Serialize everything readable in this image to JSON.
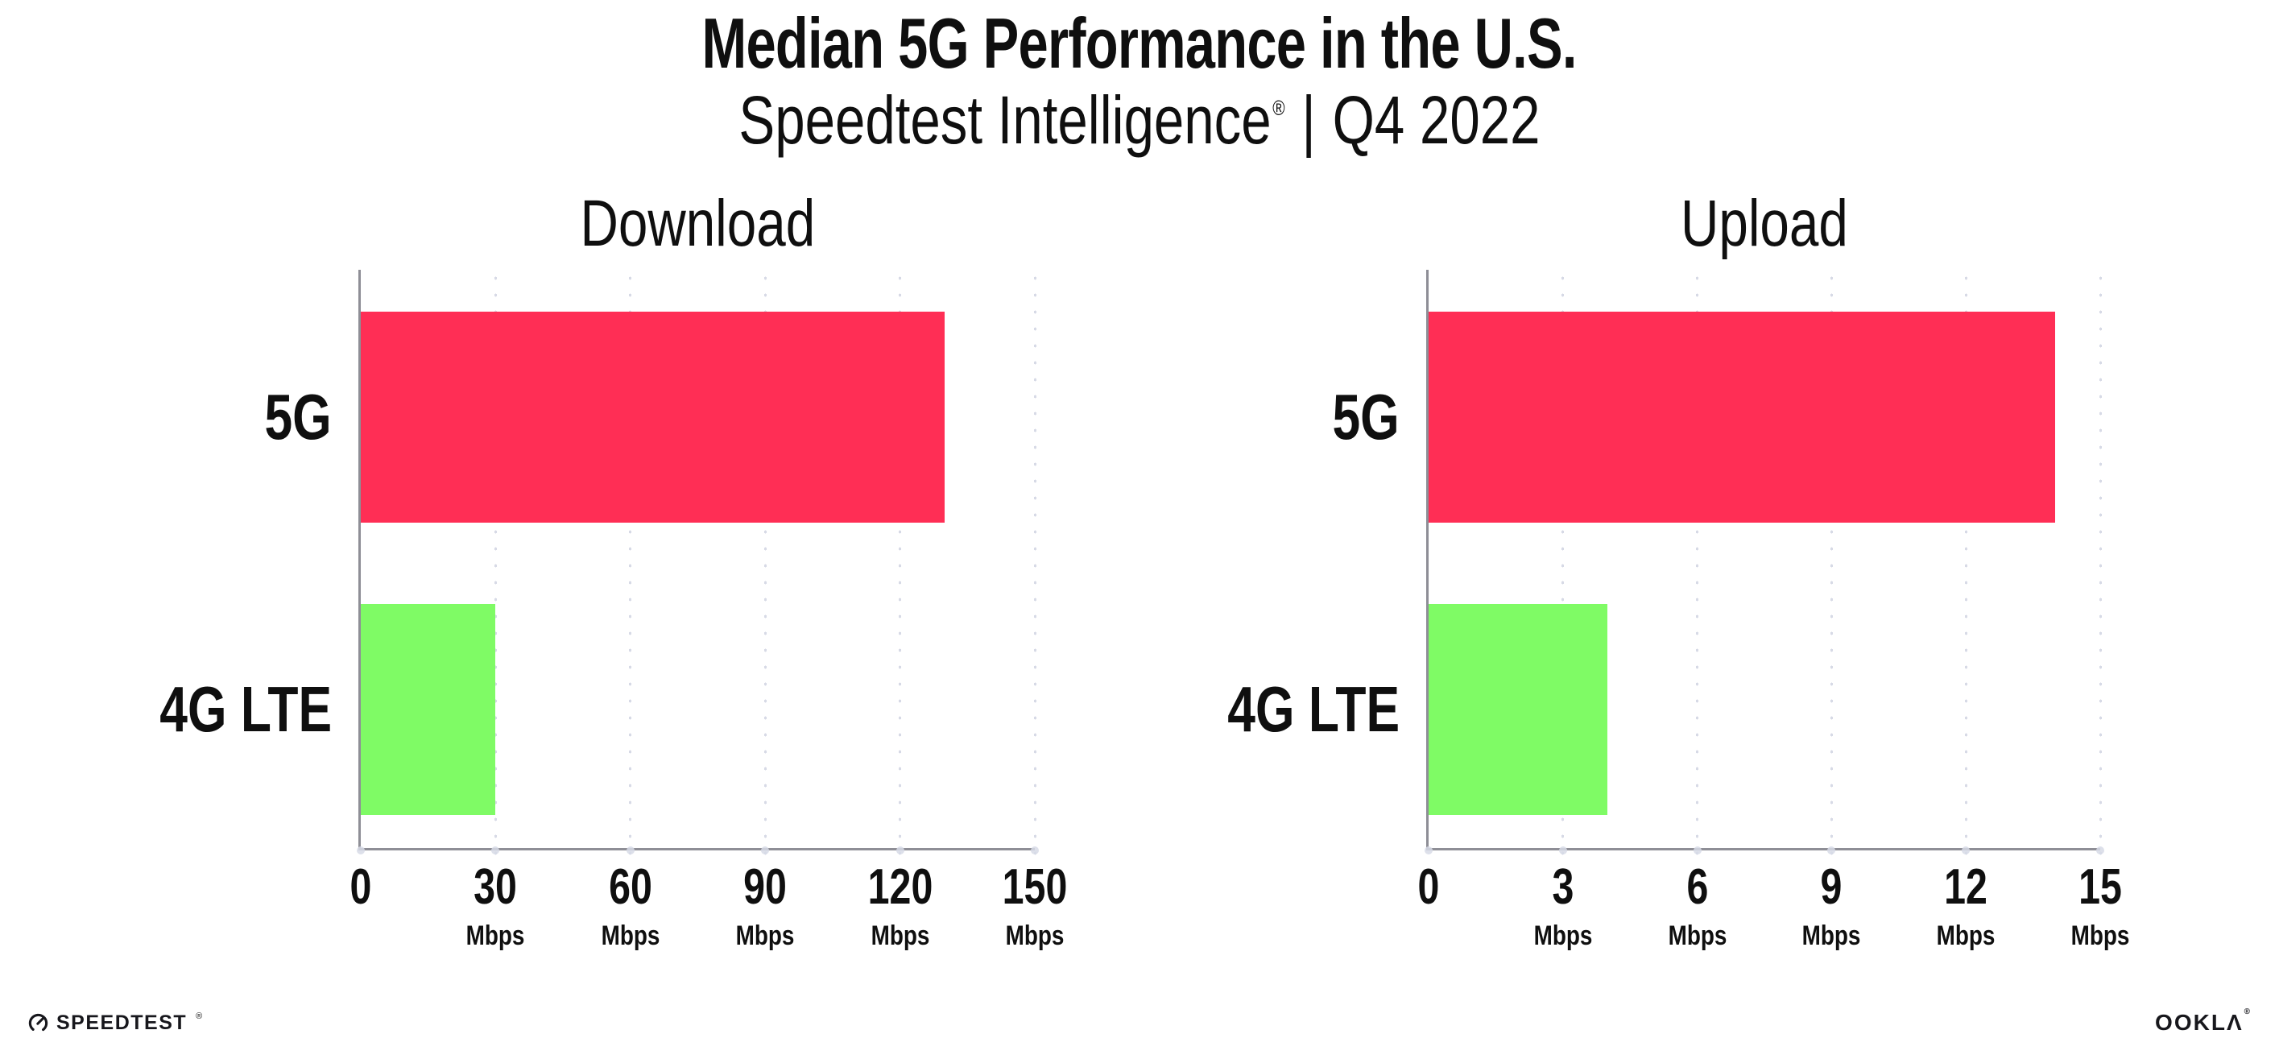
{
  "page": {
    "title": "Median 5G Performance in the U.S.",
    "subtitle": {
      "product": "Speedtest Intelligence",
      "registered_mark": "®",
      "divider": "|",
      "quarter": "Q4 2022"
    }
  },
  "colors": {
    "background": "#ffffff",
    "text": "#0f0f0f",
    "axis_line": "#8e8e96",
    "gridline": "#d7dae6",
    "bar_5g": "#ff2e55",
    "bar_4g_lte": "#7ffb65"
  },
  "chart_data": [
    {
      "type": "bar",
      "orientation": "horizontal",
      "title": "Download",
      "categories": [
        "5G",
        "4G LTE"
      ],
      "values": [
        130,
        30
      ],
      "unit": "Mbps",
      "xlim": [
        0,
        150
      ],
      "xticks": [
        0,
        30,
        60,
        90,
        120,
        150
      ],
      "bar_colors": [
        "#ff2e55",
        "#7ffb65"
      ],
      "grid": "vertical-dotted",
      "legend": "none"
    },
    {
      "type": "bar",
      "orientation": "horizontal",
      "title": "Upload",
      "categories": [
        "5G",
        "4G LTE"
      ],
      "values": [
        14,
        4
      ],
      "unit": "Mbps",
      "xlim": [
        0,
        15
      ],
      "xticks": [
        0,
        3,
        6,
        9,
        12,
        15
      ],
      "bar_colors": [
        "#ff2e55",
        "#7ffb65"
      ],
      "grid": "vertical-dotted",
      "legend": "none"
    }
  ],
  "footer": {
    "speedtest_wordmark": "SPEEDTEST",
    "speedtest_mark": "®",
    "gauge_icon": "speedtest-gauge-icon",
    "ookla_wordmark_prefix": "OOKL",
    "ookla_wordmark_lambda": "Λ",
    "ookla_mark": "®"
  }
}
